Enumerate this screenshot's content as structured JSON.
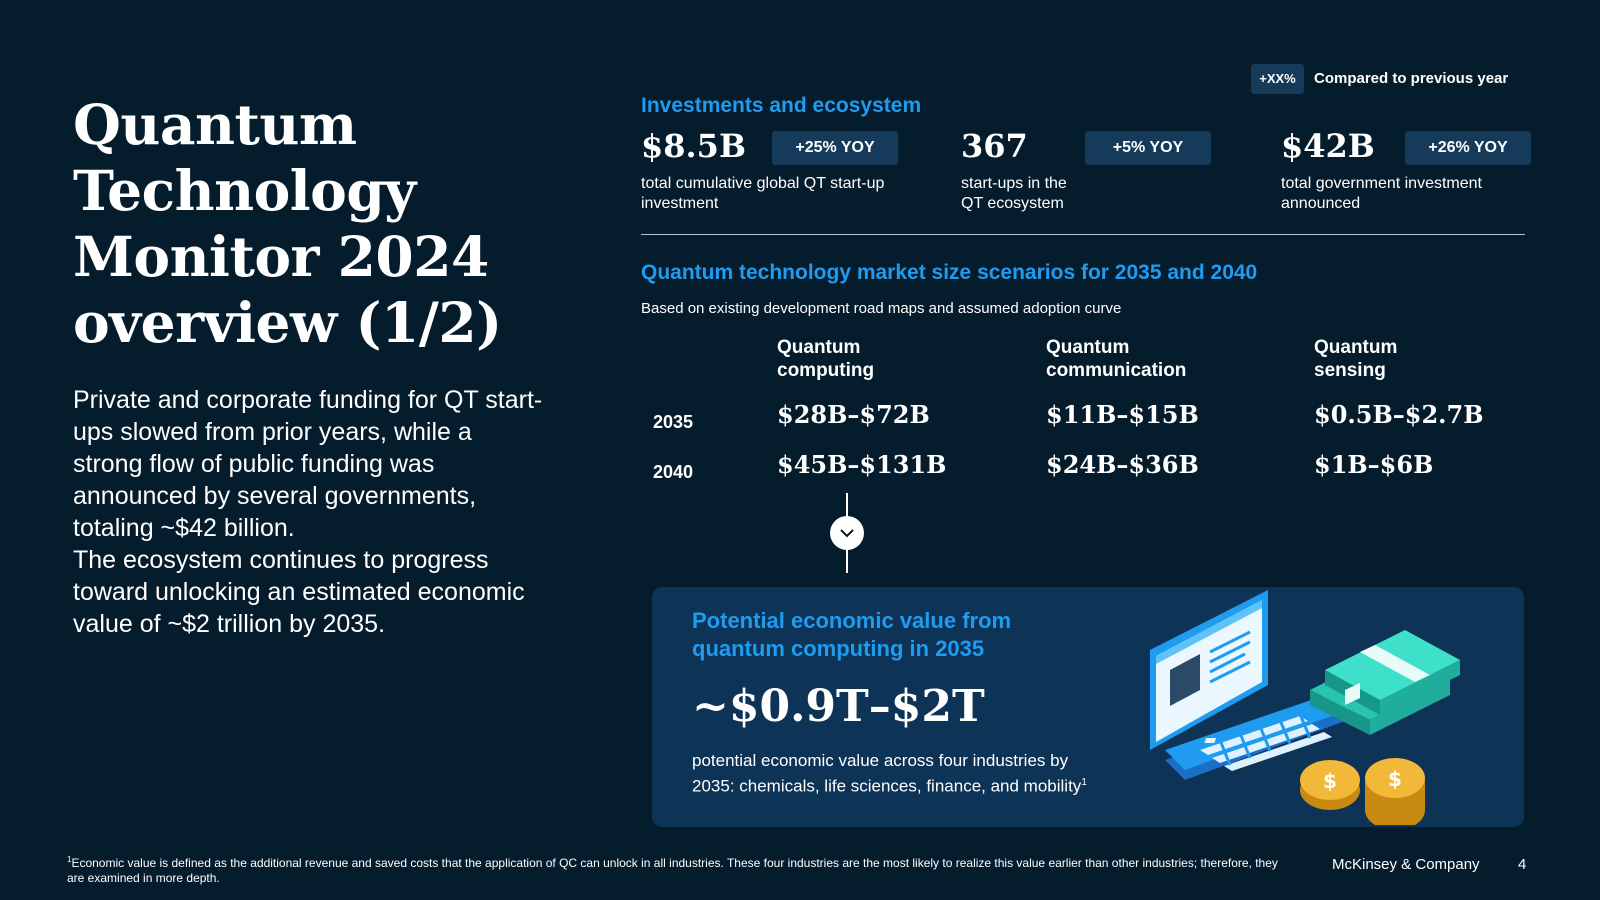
{
  "title_lines": [
    "Quantum",
    "Technology",
    "Monitor 2024",
    "overview (1/2)"
  ],
  "intro": {
    "p1": "Private and corporate funding for QT start-ups slowed from prior years, while a strong flow of public funding was announced by several governments, totaling ~$42 billion.",
    "p2": "The ecosystem continues to progress toward unlocking an estimated economic value of ~$2 trillion by 2035."
  },
  "legend": {
    "badge": "+XX%",
    "text": "Compared to previous year"
  },
  "investments": {
    "title": "Investments and ecosystem",
    "kpis": [
      {
        "value": "$8.5B",
        "badge": "+25% YOY",
        "desc": "total cumulative global QT start-up investment"
      },
      {
        "value": "367",
        "badge": "+5% YOY",
        "desc_l1": "start-ups in the",
        "desc_l2": "QT ecosystem"
      },
      {
        "value": "$42B",
        "badge": "+26% YOY",
        "desc_l1": "total government investment",
        "desc_l2": "announced"
      }
    ]
  },
  "market": {
    "title": "Quantum technology market size scenarios for 2035 and 2040",
    "subtitle": "Based on existing development road maps and assumed adoption curve",
    "columns": [
      {
        "l1": "Quantum",
        "l2": "computing"
      },
      {
        "l1": "Quantum",
        "l2": "communication"
      },
      {
        "l1": "Quantum",
        "l2": "sensing"
      }
    ],
    "rows": [
      {
        "year": "2035",
        "values": [
          "$28B–$72B",
          "$11B–$15B",
          "$0.5B–$2.7B"
        ]
      },
      {
        "year": "2040",
        "values": [
          "$45B–$131B",
          "$24B–$36B",
          "$1B–$6B"
        ]
      }
    ]
  },
  "economic": {
    "title_l1": "Potential economic value from",
    "title_l2": "quantum computing in 2035",
    "value_main": "~$0.9T–",
    "value_tail": "$2T",
    "desc": "potential economic value across four industries by 2035: chemicals, life sciences, finance, and mobility",
    "desc_sup": "1"
  },
  "footnote": {
    "sup": "1",
    "text": "Economic value is defined as the additional revenue and saved costs that the application of QC can unlock in all industries. These four industries are the most likely to realize this value earlier than other industries; therefore, they are examined in more depth."
  },
  "brand": "McKinsey & Company",
  "page_number": "4",
  "colors": {
    "background": "#051c2c",
    "accent": "#1f9cf0",
    "panel": "#0d3356",
    "badge": "#163a5a"
  },
  "icons": {
    "connector": "chevron-down-icon",
    "illustration": "laptop-money-illustration"
  }
}
